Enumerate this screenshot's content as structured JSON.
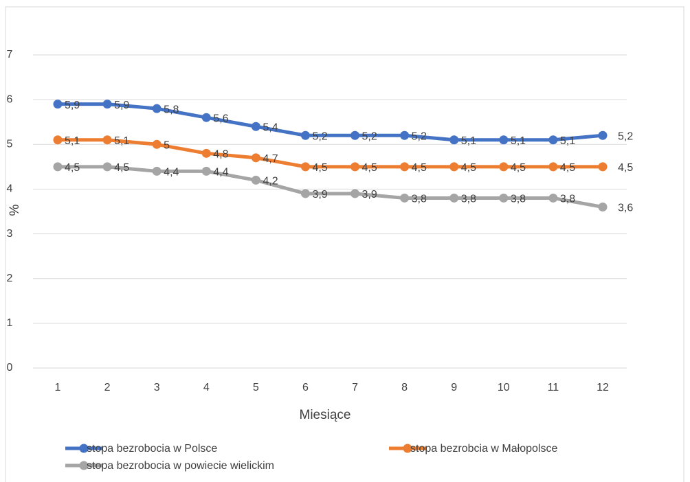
{
  "chart_data": {
    "type": "line",
    "x_label": "Miesiące",
    "y_label": "%",
    "categories": [
      "1",
      "2",
      "3",
      "4",
      "5",
      "6",
      "7",
      "8",
      "9",
      "10",
      "11",
      "12"
    ],
    "series": [
      {
        "name": "stopa bezrobocia w Polsce",
        "color": "#4472c4",
        "values": [
          5.9,
          5.9,
          5.8,
          5.6,
          5.4,
          5.2,
          5.2,
          5.2,
          5.1,
          5.1,
          5.1,
          5.2
        ],
        "value_labels": [
          "5,9",
          "5,9",
          "5,8",
          "5,6",
          "5,4",
          "5,2",
          "5,2",
          "5,2",
          "5,1",
          "5,1",
          "5,1",
          "5,2"
        ]
      },
      {
        "name": "stopa bezrobcia w Małopolsce",
        "color": "#ed7d31",
        "values": [
          5.1,
          5.1,
          5,
          4.8,
          4.7,
          4.5,
          4.5,
          4.5,
          4.5,
          4.5,
          4.5,
          4.5
        ],
        "value_labels": [
          "5,1",
          "5,1",
          "5",
          "4,8",
          "4,7",
          "4,5",
          "4,5",
          "4,5",
          "4,5",
          "4,5",
          "4,5",
          "4,5"
        ]
      },
      {
        "name": "stopa bezrobocia w powiecie wielickim",
        "color": "#a5a5a5",
        "values": [
          4.5,
          4.5,
          4.4,
          4.4,
          4.2,
          3.9,
          3.9,
          3.8,
          3.8,
          3.8,
          3.8,
          3.6
        ],
        "value_labels": [
          "4,5",
          "4,5",
          "4,4",
          "4,4",
          "4,2",
          "3,9",
          "3,9",
          "3,8",
          "3,8",
          "3,8",
          "3,8",
          "3,6"
        ]
      }
    ],
    "ylim": [
      0,
      7
    ],
    "yticks": [
      0,
      1,
      2,
      3,
      4,
      5,
      6,
      7
    ],
    "grid": true,
    "legend": "bottom"
  }
}
